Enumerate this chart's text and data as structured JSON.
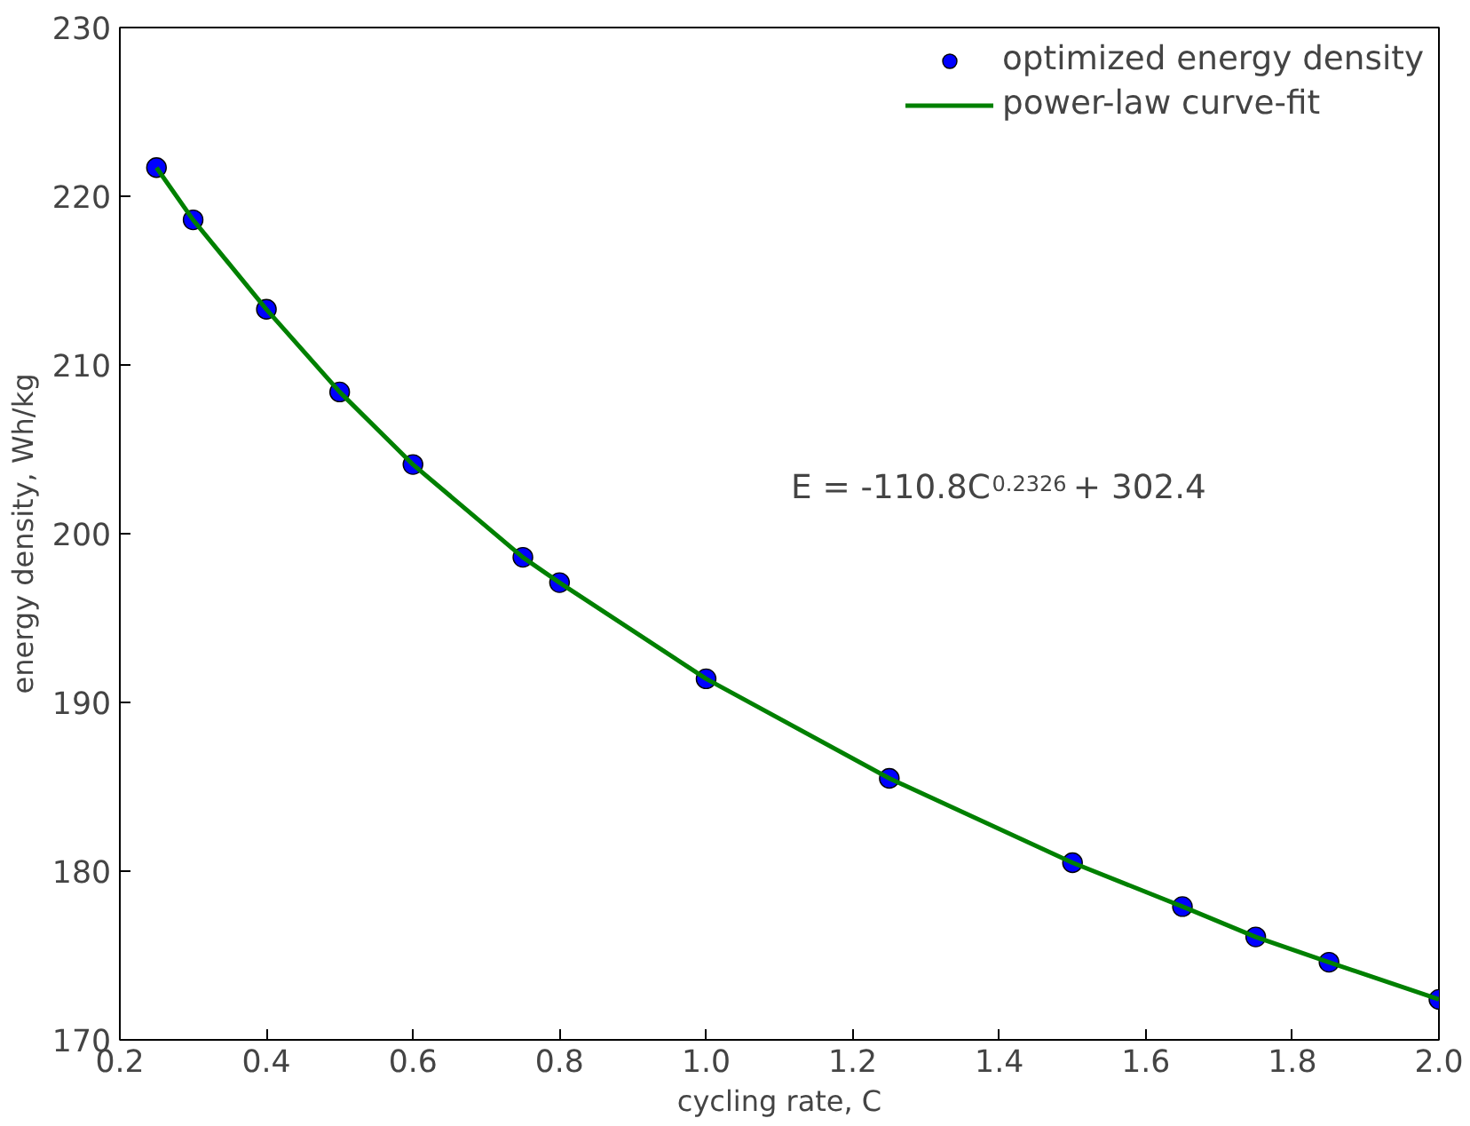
{
  "chart_data": {
    "type": "scatter",
    "xlabel": "cycling rate, C",
    "ylabel": "energy density, Wh/kg",
    "x": [
      0.25,
      0.3,
      0.4,
      0.5,
      0.6,
      0.75,
      0.8,
      1.0,
      1.25,
      1.5,
      1.65,
      1.75,
      1.85,
      2.0
    ],
    "series": [
      {
        "name": "optimized energy density",
        "type": "scatter",
        "color": "#0000ff",
        "marker": "circle",
        "values": [
          221.7,
          218.6,
          213.3,
          208.4,
          204.1,
          198.6,
          197.1,
          191.4,
          185.5,
          180.5,
          177.9,
          176.1,
          174.6,
          172.4
        ]
      },
      {
        "name": "power-law curve-fit",
        "type": "line",
        "color": "#008000",
        "marker": "none",
        "line_style": "solid",
        "values": [
          221.7,
          218.6,
          213.3,
          208.4,
          204.1,
          198.6,
          197.1,
          191.4,
          185.5,
          180.5,
          177.9,
          176.1,
          174.6,
          172.4
        ]
      }
    ],
    "xlim": [
      0.2,
      2.0
    ],
    "ylim": [
      170,
      230
    ],
    "xticks": [
      0.2,
      0.4,
      0.6,
      0.8,
      {
        "value": 1.0,
        "label": "1.0"
      },
      1.2,
      1.4,
      1.6,
      1.8,
      {
        "value": 2.0,
        "label": "2.0"
      }
    ],
    "yticks": [
      170,
      180,
      190,
      200,
      210,
      220,
      230
    ],
    "annotations": [
      "E = -110.8C$^{0.2326}$ + 302.4"
    ],
    "grid": false,
    "legend": "top right"
  }
}
